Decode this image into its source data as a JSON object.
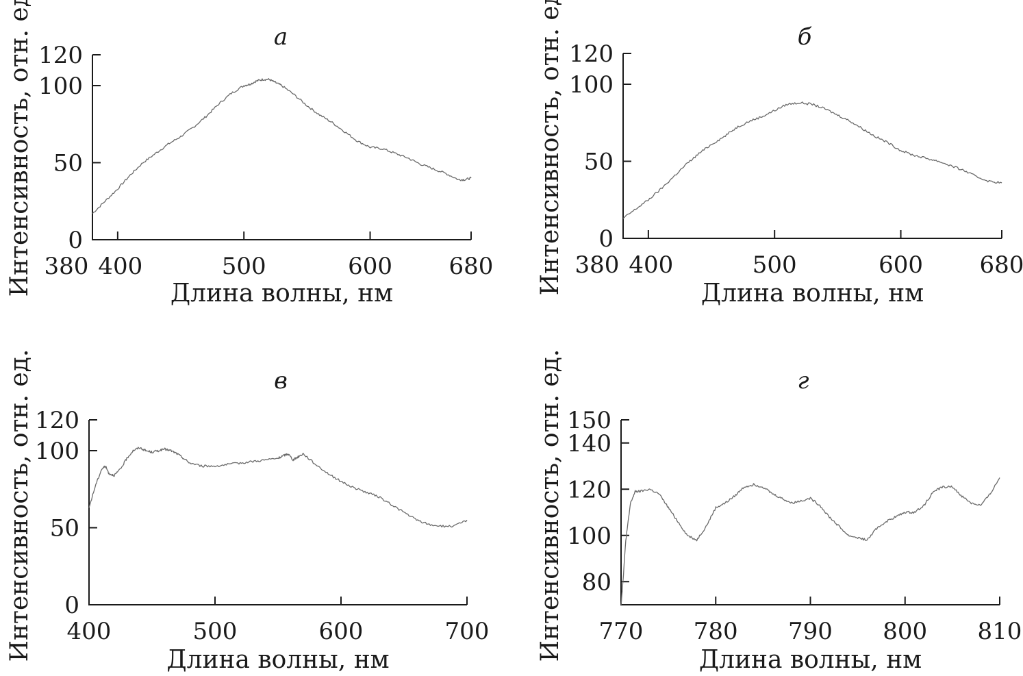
{
  "chart_data": [
    {
      "type": "line",
      "panel_label": "а",
      "xlabel": "Длина волны, нм",
      "ylabel": "Интенсивность, отн. ед.",
      "xlim": [
        380,
        680
      ],
      "ylim": [
        0,
        120
      ],
      "xticks": [
        380,
        400,
        500,
        600,
        680
      ],
      "yticks": [
        0,
        50,
        100,
        120
      ],
      "grid": false,
      "series": [
        {
          "color": "#6a6a6a",
          "x": [
            380,
            390,
            400,
            410,
            420,
            430,
            440,
            450,
            460,
            470,
            480,
            490,
            500,
            505,
            510,
            515,
            520,
            525,
            530,
            540,
            550,
            560,
            570,
            580,
            590,
            600,
            610,
            620,
            630,
            640,
            650,
            660,
            670,
            675,
            680
          ],
          "y": [
            17,
            25,
            33,
            42,
            50,
            56,
            62,
            67,
            73,
            80,
            88,
            95,
            100,
            101,
            103,
            104,
            104,
            102,
            100,
            94,
            87,
            81,
            76,
            70,
            64,
            60,
            59,
            56,
            53,
            49,
            46,
            43,
            39,
            39,
            40
          ]
        }
      ]
    },
    {
      "type": "line",
      "panel_label": "б",
      "xlabel": "Длина волны, нм",
      "ylabel": "Интенсивность, отн. ед.",
      "xlim": [
        380,
        680
      ],
      "ylim": [
        0,
        120
      ],
      "xticks": [
        380,
        400,
        500,
        600,
        680
      ],
      "yticks": [
        0,
        50,
        100,
        120
      ],
      "grid": false,
      "series": [
        {
          "color": "#6a6a6a",
          "x": [
            380,
            390,
            400,
            410,
            420,
            430,
            440,
            450,
            460,
            470,
            480,
            490,
            500,
            510,
            520,
            530,
            540,
            550,
            560,
            570,
            580,
            590,
            600,
            610,
            620,
            630,
            640,
            650,
            660,
            670,
            680
          ],
          "y": [
            13,
            19,
            25,
            32,
            40,
            48,
            55,
            61,
            66,
            72,
            76,
            79,
            83,
            87,
            88,
            87,
            84,
            80,
            76,
            71,
            66,
            62,
            57,
            54,
            52,
            50,
            47,
            44,
            40,
            37,
            36
          ]
        }
      ]
    },
    {
      "type": "line",
      "panel_label": "в",
      "xlabel": "Длина волны, нм",
      "ylabel": "Интенсивность, отн. ед.",
      "xlim": [
        400,
        700
      ],
      "ylim": [
        0,
        120
      ],
      "xticks": [
        400,
        500,
        600,
        700
      ],
      "yticks": [
        0,
        50,
        100,
        120
      ],
      "grid": false,
      "series": [
        {
          "color": "#6a6a6a",
          "x": [
            400,
            405,
            410,
            413,
            416,
            420,
            425,
            430,
            435,
            440,
            445,
            450,
            455,
            460,
            465,
            470,
            475,
            480,
            490,
            500,
            510,
            520,
            530,
            540,
            550,
            555,
            558,
            562,
            566,
            570,
            580,
            590,
            600,
            610,
            620,
            630,
            640,
            650,
            660,
            670,
            680,
            690,
            700
          ],
          "y": [
            63,
            77,
            88,
            90,
            85,
            84,
            88,
            95,
            100,
            102,
            100,
            99,
            100,
            101,
            100,
            98,
            95,
            92,
            90,
            90,
            91,
            92,
            93,
            94,
            95,
            97,
            98,
            94,
            96,
            98,
            91,
            85,
            80,
            76,
            73,
            70,
            65,
            60,
            55,
            52,
            51,
            51,
            55
          ]
        }
      ]
    },
    {
      "type": "line",
      "panel_label": "г",
      "xlabel": "Длина волны, нм",
      "ylabel": "Интенсивность, отн. ед.",
      "xlim": [
        770,
        810
      ],
      "ylim": [
        70,
        150
      ],
      "xticks": [
        770,
        780,
        790,
        800,
        810
      ],
      "yticks": [
        80,
        100,
        120,
        140,
        150
      ],
      "grid": false,
      "series": [
        {
          "color": "#6a6a6a",
          "x": [
            770.0,
            770.2,
            770.5,
            771.0,
            771.5,
            772.0,
            773.0,
            774.0,
            775.0,
            776.0,
            777.0,
            778.0,
            779.0,
            780.0,
            781.0,
            782.0,
            783.0,
            784.0,
            785.0,
            786.0,
            787.0,
            788.0,
            789.0,
            790.0,
            791.0,
            792.0,
            793.0,
            794.0,
            795.0,
            796.0,
            797.0,
            798.0,
            799.0,
            800.0,
            801.0,
            802.0,
            803.0,
            804.0,
            805.0,
            806.0,
            807.0,
            808.0,
            809.0,
            810.0
          ],
          "y": [
            70,
            80,
            98,
            114,
            119,
            119,
            120,
            118,
            112,
            106,
            100,
            98,
            104,
            112,
            114,
            117,
            121,
            122,
            121,
            118,
            116,
            114,
            115,
            116,
            113,
            108,
            104,
            100,
            99,
            98,
            103,
            106,
            108,
            110,
            110,
            113,
            119,
            121,
            121,
            117,
            114,
            113,
            118,
            125
          ]
        }
      ]
    }
  ]
}
